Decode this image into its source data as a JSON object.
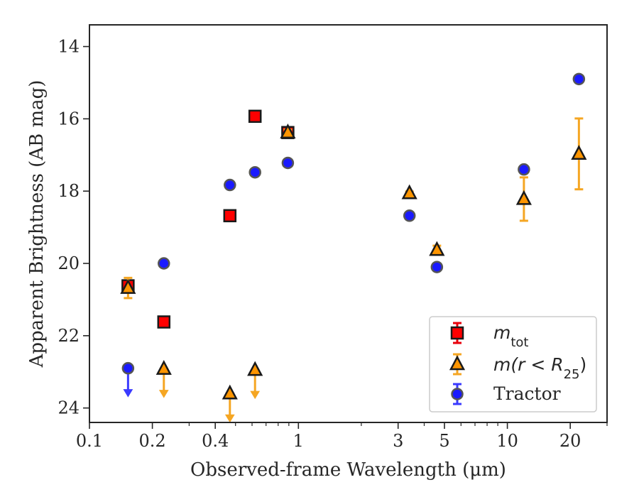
{
  "chart_data": {
    "type": "scatter",
    "xlabel": "Observed-frame Wavelength (μm)",
    "ylabel": "Apparent Brightness (AB mag)",
    "x_scale": "log",
    "xlim": [
      0.1,
      30
    ],
    "ylim": [
      24.4,
      13.4
    ],
    "y_inverted": true,
    "x_ticks": [
      0.1,
      0.2,
      0.4,
      1,
      3,
      5,
      10,
      20
    ],
    "x_tick_labels": [
      "0.1",
      "0.2",
      "0.4",
      "1",
      "3",
      "5",
      "10",
      "20"
    ],
    "y_ticks": [
      14,
      16,
      18,
      20,
      22,
      24
    ],
    "y_tick_labels": [
      "14",
      "16",
      "18",
      "20",
      "22",
      "24"
    ],
    "grid": false,
    "legend_position": "bottom-right",
    "series": [
      {
        "name_base": "m",
        "name_sub": "tot",
        "marker": "square",
        "face_color": "#ff0000",
        "edge_color": "#1a1a1a",
        "error_color": "#e8000b",
        "points": [
          {
            "x": 0.153,
            "y": 20.62,
            "yerr": 0.12
          },
          {
            "x": 0.227,
            "y": 21.62,
            "yerr": 0.05
          },
          {
            "x": 0.47,
            "y": 18.68,
            "yerr": 0.04
          },
          {
            "x": 0.62,
            "y": 15.93,
            "yerr": 0.04
          },
          {
            "x": 0.89,
            "y": 16.38,
            "yerr": 0.04
          }
        ]
      },
      {
        "name_main": "m(r < R",
        "name_sub": "25",
        "name_close": ")",
        "marker": "triangle",
        "face_color": "#ff9500",
        "edge_color": "#1a1a1a",
        "error_color": "#f5a623",
        "points": [
          {
            "x": 0.153,
            "y": 20.68,
            "yerr": 0.28
          },
          {
            "x": 0.89,
            "y": 16.38,
            "yerr": 0.08
          },
          {
            "x": 3.4,
            "y": 18.06,
            "yerr": 0.05
          },
          {
            "x": 4.6,
            "y": 19.63,
            "yerr": 0.12
          },
          {
            "x": 12.0,
            "y": 18.22,
            "yerr": 0.6
          },
          {
            "x": 22.0,
            "y": 16.97,
            "yerr": 0.98
          }
        ],
        "upper_limits": [
          {
            "x": 0.227,
            "y": 22.92
          },
          {
            "x": 0.47,
            "y": 23.6
          },
          {
            "x": 0.62,
            "y": 22.95
          }
        ]
      },
      {
        "name": "Tractor",
        "marker": "circle",
        "face_color": "#1a1aff",
        "edge_color": "#555555",
        "error_color": "#3a3aff",
        "points": [
          {
            "x": 0.227,
            "y": 20.0,
            "yerr": 0.05
          },
          {
            "x": 0.47,
            "y": 17.83,
            "yerr": 0.03
          },
          {
            "x": 0.62,
            "y": 17.48,
            "yerr": 0.03
          },
          {
            "x": 0.89,
            "y": 17.22,
            "yerr": 0.03
          },
          {
            "x": 3.4,
            "y": 18.68,
            "yerr": 0.03
          },
          {
            "x": 4.6,
            "y": 20.1,
            "yerr": 0.05
          },
          {
            "x": 12.0,
            "y": 17.4,
            "yerr": 0.05
          },
          {
            "x": 22.0,
            "y": 14.9,
            "yerr": 0.05
          }
        ],
        "upper_limits": [
          {
            "x": 0.153,
            "y": 22.9
          }
        ]
      }
    ]
  }
}
